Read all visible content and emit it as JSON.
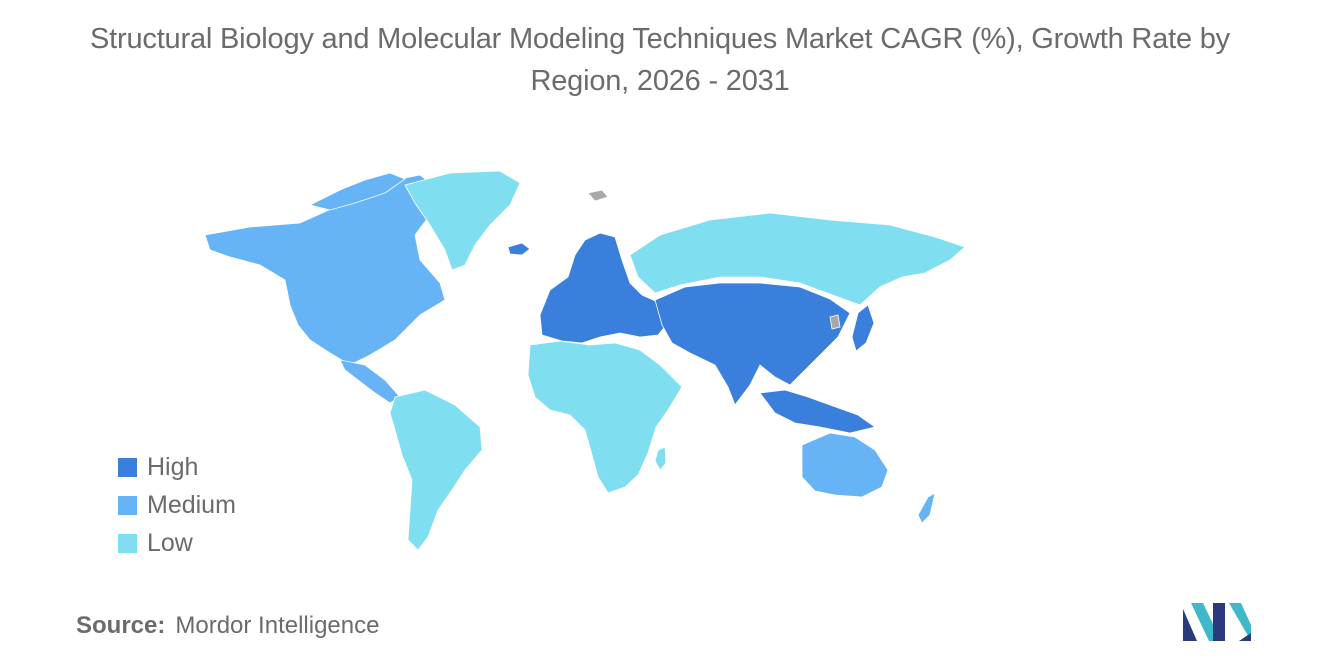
{
  "title": {
    "line1": "Structural Biology and Molecular Modeling Techniques Market CAGR (%), Growth Rate by",
    "line2": "Region, 2026 - 2031"
  },
  "colors": {
    "high": "#3b7fdc",
    "medium": "#66b4f6",
    "low": "#7fdff0",
    "no_data": "#a9a9a9"
  },
  "legend": [
    {
      "label": "High",
      "color": "#3b7fdc"
    },
    {
      "label": "Medium",
      "color": "#66b4f6"
    },
    {
      "label": "Low",
      "color": "#7fdff0"
    }
  ],
  "source": {
    "key": "Source:",
    "value": "Mordor Intelligence"
  }
}
